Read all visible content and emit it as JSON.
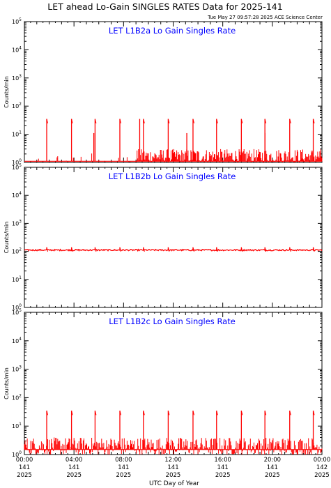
{
  "title": "LET ahead Lo-Gain SINGLES RATES Data for 2025-141",
  "timestamp": "Tue May 27 09:57:28 2025 ACE Science Center",
  "xlabel": "UTC Day of Year",
  "colors": {
    "data": "#ff0000",
    "panel_title": "#0000ff",
    "axes": "#000000"
  },
  "chart_data": [
    {
      "type": "line",
      "title": "LET L1B2a Lo Gain Singles Rate",
      "ylabel": "Counts/min",
      "yscale": "log",
      "ylim": [
        1,
        100000
      ],
      "y_ticks": [
        "10^0",
        "10^1",
        "10^2",
        "10^3",
        "10^4",
        "10^5"
      ],
      "baseline": 1.1,
      "noise_range": [
        1,
        3
      ],
      "noise_start_hour": 9,
      "spikes": [
        {
          "hour": 1.8,
          "value": 35
        },
        {
          "hour": 3.8,
          "value": 35
        },
        {
          "hour": 5.7,
          "value": 35
        },
        {
          "hour": 7.7,
          "value": 35
        },
        {
          "hour": 9.6,
          "value": 35
        },
        {
          "hour": 11.6,
          "value": 35
        },
        {
          "hour": 13.6,
          "value": 35
        },
        {
          "hour": 15.5,
          "value": 35
        },
        {
          "hour": 17.5,
          "value": 35
        },
        {
          "hour": 19.4,
          "value": 35
        },
        {
          "hour": 21.4,
          "value": 35
        },
        {
          "hour": 23.3,
          "value": 35
        }
      ],
      "drops": [
        {
          "hour": 5.6,
          "value": 11
        },
        {
          "hour": 9.3,
          "value": 35
        },
        {
          "hour": 13.1,
          "value": 11
        },
        {
          "hour": 19.4,
          "value": 11
        }
      ]
    },
    {
      "type": "line",
      "title": "LET L1B2b Lo Gain Singles Rate",
      "ylabel": "Counts/min",
      "yscale": "log",
      "ylim": [
        1,
        100000
      ],
      "y_ticks": [
        "10^0",
        "10^1",
        "10^2",
        "10^3",
        "10^4",
        "10^5"
      ],
      "baseline": 110,
      "noise_range": [
        105,
        118
      ],
      "spikes": [
        {
          "hour": 1.8,
          "value": 140
        },
        {
          "hour": 3.8,
          "value": 140
        },
        {
          "hour": 5.7,
          "value": 140
        },
        {
          "hour": 7.7,
          "value": 140
        },
        {
          "hour": 9.6,
          "value": 140
        },
        {
          "hour": 11.6,
          "value": 140
        },
        {
          "hour": 13.6,
          "value": 140
        },
        {
          "hour": 15.5,
          "value": 140
        },
        {
          "hour": 17.5,
          "value": 140
        },
        {
          "hour": 19.4,
          "value": 140
        },
        {
          "hour": 21.4,
          "value": 140
        },
        {
          "hour": 23.3,
          "value": 140
        }
      ]
    },
    {
      "type": "line",
      "title": "LET L1B2c Lo Gain Singles Rate",
      "ylabel": "Counts/min",
      "yscale": "log",
      "ylim": [
        1,
        100000
      ],
      "y_ticks": [
        "10^0",
        "10^1",
        "10^2",
        "10^3",
        "10^4",
        "10^5"
      ],
      "baseline": 1.5,
      "noise_range": [
        1,
        4
      ],
      "noise_start_hour": 0,
      "spikes": [
        {
          "hour": 1.8,
          "value": 35
        },
        {
          "hour": 3.8,
          "value": 35
        },
        {
          "hour": 5.7,
          "value": 35
        },
        {
          "hour": 7.7,
          "value": 35
        },
        {
          "hour": 9.6,
          "value": 35
        },
        {
          "hour": 11.6,
          "value": 35
        },
        {
          "hour": 13.6,
          "value": 35
        },
        {
          "hour": 15.5,
          "value": 35
        },
        {
          "hour": 17.5,
          "value": 35
        },
        {
          "hour": 19.4,
          "value": 35
        },
        {
          "hour": 21.4,
          "value": 35
        },
        {
          "hour": 23.3,
          "value": 35
        }
      ]
    }
  ],
  "x_axis": {
    "range_hours": [
      0,
      24
    ],
    "ticks": [
      {
        "hour": 0,
        "time": "00:00",
        "doy": "141",
        "year": "2025"
      },
      {
        "hour": 4,
        "time": "04:00",
        "doy": "141",
        "year": "2025"
      },
      {
        "hour": 8,
        "time": "08:00",
        "doy": "141",
        "year": "2025"
      },
      {
        "hour": 12,
        "time": "12:00",
        "doy": "141",
        "year": "2025"
      },
      {
        "hour": 16,
        "time": "16:00",
        "doy": "141",
        "year": "2025"
      },
      {
        "hour": 20,
        "time": "20:00",
        "doy": "141",
        "year": "2025"
      },
      {
        "hour": 24,
        "time": "00:00",
        "doy": "142",
        "year": "2025"
      }
    ]
  }
}
